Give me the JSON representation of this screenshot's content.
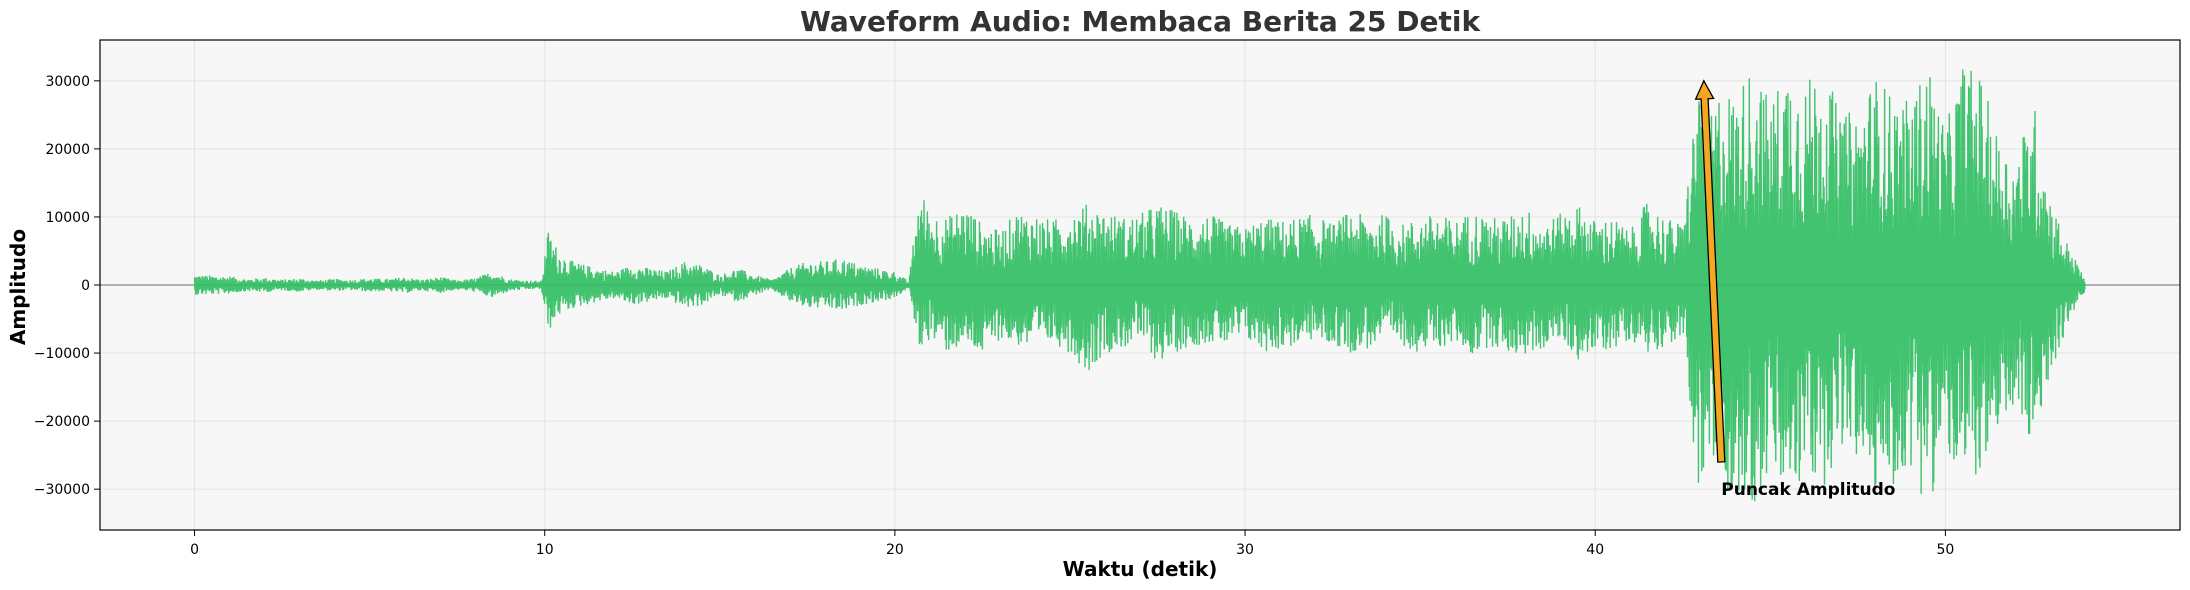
{
  "chart_data": {
    "type": "line",
    "title": "Waveform Audio: Membaca Berita 25 Detik",
    "xlabel": "Waktu (detik)",
    "ylabel": "Amplitudo",
    "xlim": [
      -2.7,
      56.7
    ],
    "ylim": [
      -36000,
      36000
    ],
    "xticks": [
      0,
      10,
      20,
      30,
      40,
      50
    ],
    "yticks": [
      -30000,
      -20000,
      -10000,
      0,
      10000,
      20000,
      30000
    ],
    "xtick_labels": [
      "0",
      "10",
      "20",
      "30",
      "40",
      "50"
    ],
    "ytick_labels": [
      "−30000",
      "−20000",
      "−10000",
      "0",
      "10000",
      "20000",
      "30000"
    ],
    "grid": true,
    "background_color": "#f7f7f7",
    "waveform_color": "#2ebd5f",
    "zero_line_color": "#888888",
    "series": [
      {
        "type": "waveform_envelope",
        "x": [
          0,
          0.5,
          1,
          1.5,
          2,
          2.5,
          3,
          3.5,
          4,
          4.5,
          5,
          5.5,
          6,
          6.5,
          7,
          7.5,
          8,
          8.5,
          9,
          9.5,
          9.9,
          10.1,
          10.4,
          10.8,
          11.5,
          12,
          12.5,
          13,
          13.5,
          14,
          14.5,
          15,
          15.5,
          16,
          16.5,
          17,
          17.5,
          18,
          18.5,
          19,
          19.5,
          20,
          20.4,
          20.7,
          21,
          21.5,
          22,
          22.5,
          23,
          23.5,
          24,
          24.5,
          25,
          25.5,
          26,
          26.5,
          27,
          27.5,
          28,
          28.5,
          29,
          29.5,
          30,
          30.5,
          31,
          31.5,
          32,
          32.5,
          33,
          33.5,
          34,
          34.5,
          35,
          35.5,
          36,
          36.5,
          37,
          37.5,
          38,
          38.5,
          39,
          39.5,
          40,
          40.5,
          41,
          41.5,
          42,
          42.5,
          43,
          43.3,
          43.6,
          44,
          44.5,
          45,
          45.5,
          46,
          46.5,
          47,
          47.5,
          48,
          48.5,
          49,
          49.5,
          50,
          50.5,
          51,
          51.5,
          52,
          52.5,
          53,
          53.5,
          54
        ],
        "upper": [
          1500,
          1400,
          1300,
          900,
          1100,
          800,
          1000,
          700,
          900,
          800,
          1000,
          900,
          1200,
          800,
          1200,
          700,
          1000,
          2000,
          900,
          700,
          600,
          8200,
          5000,
          3500,
          2500,
          2000,
          3000,
          2500,
          2000,
          3500,
          3000,
          1500,
          2500,
          1500,
          800,
          2500,
          3500,
          3500,
          4000,
          3000,
          2500,
          2000,
          500,
          14500,
          11000,
          10000,
          12000,
          9000,
          8000,
          11000,
          10500,
          9500,
          11000,
          12000,
          11000,
          10000,
          10500,
          12000,
          11000,
          10000,
          10500,
          9000,
          8500,
          10000,
          9500,
          10000,
          10500,
          9000,
          11000,
          10000,
          10500,
          9000,
          10000,
          10500,
          9500,
          11000,
          10000,
          10000,
          11500,
          9500,
          10500,
          12000,
          9500,
          10000,
          8000,
          12500,
          10000,
          9000,
          33000,
          25000,
          30000,
          28000,
          33000,
          27000,
          33000,
          30000,
          33000,
          25000,
          26000,
          31000,
          28000,
          27000,
          33000,
          23000,
          33000,
          31000,
          22000,
          18000,
          28000,
          13000,
          6000,
          800
        ],
        "lower": [
          -1500,
          -1400,
          -1300,
          -900,
          -1100,
          -800,
          -1000,
          -700,
          -900,
          -800,
          -1000,
          -900,
          -1200,
          -800,
          -1200,
          -700,
          -1000,
          -2000,
          -900,
          -700,
          -600,
          -7000,
          -4500,
          -3500,
          -2500,
          -2000,
          -3000,
          -2500,
          -2000,
          -3500,
          -3000,
          -1500,
          -2500,
          -1500,
          -800,
          -2500,
          -3500,
          -3500,
          -4000,
          -3000,
          -2500,
          -2000,
          -500,
          -9500,
          -8000,
          -10000,
          -9000,
          -10500,
          -8000,
          -9000,
          -9500,
          -8500,
          -10000,
          -13000,
          -10000,
          -9500,
          -8000,
          -11500,
          -10000,
          -9000,
          -8500,
          -9000,
          -8000,
          -10000,
          -9500,
          -9000,
          -8000,
          -9000,
          -10000,
          -9500,
          -8000,
          -9000,
          -10000,
          -9500,
          -8500,
          -10500,
          -9000,
          -10000,
          -10500,
          -9500,
          -8000,
          -11000,
          -10000,
          -9500,
          -8000,
          -10000,
          -9000,
          -8000,
          -33000,
          -27000,
          -30000,
          -31000,
          -33000,
          -28000,
          -32000,
          -29000,
          -30000,
          -24000,
          -26000,
          -31000,
          -30000,
          -27000,
          -33000,
          -24000,
          -32000,
          -27000,
          -26000,
          -17000,
          -26000,
          -13000,
          -6000,
          -800
        ]
      }
    ],
    "annotations": [
      {
        "text": "Puncak Amplitudo",
        "x": 43.6,
        "y": -26000,
        "target_x": 43.1,
        "target_y": 30000,
        "arrow_color": "#f5a623"
      }
    ]
  }
}
